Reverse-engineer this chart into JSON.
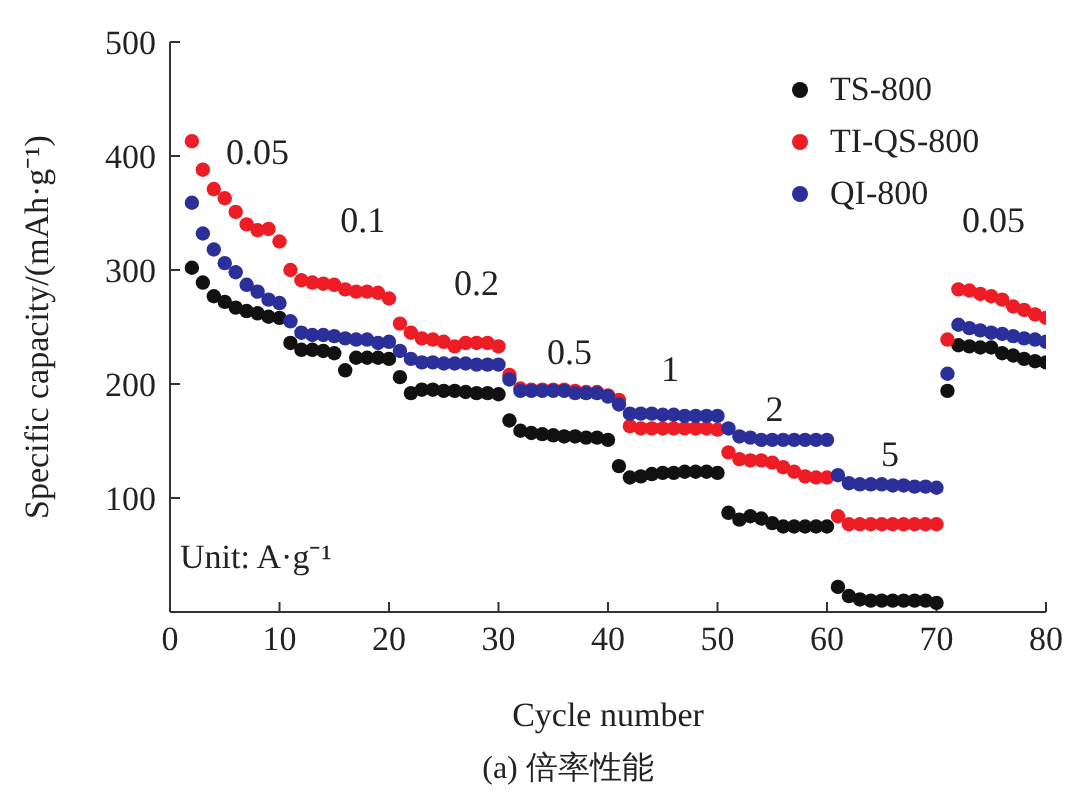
{
  "chart_data": {
    "type": "scatter",
    "title": "(a) 倍率性能",
    "xlabel": "Cycle number",
    "ylabel": "Specific capacity/(mAh·g⁻¹)",
    "x": [
      2,
      3,
      4,
      5,
      6,
      7,
      8,
      9,
      10,
      11,
      12,
      13,
      14,
      15,
      16,
      17,
      18,
      19,
      20,
      21,
      22,
      23,
      24,
      25,
      26,
      27,
      28,
      29,
      30,
      31,
      32,
      33,
      34,
      35,
      36,
      37,
      38,
      39,
      40,
      41,
      42,
      43,
      44,
      45,
      46,
      47,
      48,
      49,
      50,
      51,
      52,
      53,
      54,
      55,
      56,
      57,
      58,
      59,
      60,
      61,
      62,
      63,
      64,
      65,
      66,
      67,
      68,
      69,
      70,
      71,
      72,
      73,
      74,
      75,
      76,
      77,
      78,
      79,
      80
    ],
    "series": [
      {
        "name": "TS-800",
        "color": "#111111",
        "values": [
          302,
          289,
          277,
          272,
          267,
          264,
          262,
          259,
          258,
          236,
          230,
          230,
          229,
          227,
          212,
          223,
          223,
          223,
          222,
          206,
          192,
          195,
          195,
          194,
          194,
          193,
          192,
          192,
          191,
          168,
          159,
          157,
          156,
          155,
          154,
          154,
          153,
          153,
          151,
          128,
          118,
          119,
          121,
          122,
          122,
          123,
          123,
          123,
          122,
          87,
          81,
          84,
          82,
          78,
          75,
          75,
          75,
          75,
          75,
          22,
          14,
          11,
          10,
          10,
          10,
          10,
          10,
          10,
          8,
          194,
          234,
          233,
          232,
          232,
          227,
          225,
          222,
          220,
          219
        ]
      },
      {
        "name": "TI-QS-800",
        "color": "#ee1c25",
        "values": [
          413,
          388,
          371,
          363,
          351,
          340,
          335,
          336,
          325,
          300,
          291,
          289,
          288,
          287,
          283,
          281,
          281,
          280,
          275,
          253,
          245,
          240,
          239,
          237,
          233,
          236,
          236,
          236,
          233,
          208,
          196,
          195,
          195,
          195,
          195,
          194,
          193,
          193,
          190,
          186,
          163,
          161,
          161,
          161,
          161,
          161,
          161,
          161,
          160,
          140,
          134,
          133,
          133,
          131,
          127,
          123,
          119,
          118,
          118,
          84,
          77,
          77,
          77,
          77,
          77,
          77,
          77,
          77,
          77,
          239,
          283,
          282,
          279,
          277,
          274,
          268,
          265,
          261,
          258
        ]
      },
      {
        "name": "QI-800",
        "color": "#2b2f9a",
        "values": [
          359,
          332,
          318,
          306,
          298,
          287,
          281,
          274,
          271,
          255,
          245,
          243,
          243,
          242,
          240,
          239,
          239,
          236,
          237,
          229,
          222,
          219,
          219,
          218,
          218,
          218,
          217,
          217,
          217,
          204,
          194,
          194,
          194,
          194,
          194,
          192,
          192,
          192,
          189,
          182,
          174,
          174,
          174,
          173,
          173,
          172,
          172,
          172,
          172,
          161,
          154,
          153,
          151,
          151,
          151,
          151,
          151,
          151,
          151,
          120,
          113,
          112,
          112,
          112,
          111,
          111,
          110,
          110,
          109,
          209,
          252,
          249,
          247,
          245,
          244,
          242,
          240,
          239,
          237
        ]
      }
    ],
    "xlim": [
      0,
      80
    ],
    "xticks": [
      0,
      10,
      20,
      30,
      40,
      50,
      60,
      70,
      80
    ],
    "ylim": [
      0,
      500
    ],
    "yticks": [
      100,
      200,
      300,
      400,
      500
    ],
    "legend": "top right",
    "marker": "circle",
    "annotations": [
      "0.05",
      "0.1",
      "0.2",
      "0.5",
      "1",
      "2",
      "5",
      "0.05",
      "Unit: A·g⁻¹"
    ]
  }
}
